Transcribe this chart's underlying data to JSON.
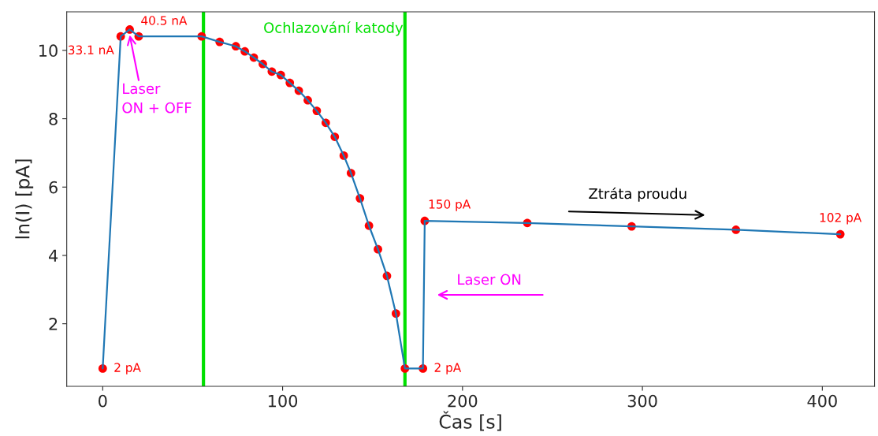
{
  "chart_data": {
    "type": "line",
    "xlabel": "Čas [s]",
    "ylabel": "ln(I) [pA]",
    "x": [
      0,
      10,
      15,
      20,
      55,
      65,
      74,
      79,
      84,
      89,
      94,
      99,
      104,
      109,
      114,
      119,
      124,
      129,
      134,
      138,
      143,
      148,
      153,
      158,
      163,
      168,
      178,
      179,
      236,
      294,
      352,
      410
    ],
    "series": [
      {
        "color": "#1f77b4",
        "values": [
          0.69,
          10.41,
          10.61,
          10.41,
          10.41,
          10.25,
          10.12,
          9.97,
          9.79,
          9.6,
          9.38,
          9.28,
          9.05,
          8.82,
          8.54,
          8.23,
          7.88,
          7.47,
          6.92,
          6.41,
          5.67,
          4.87,
          4.18,
          3.4,
          2.3,
          0.69,
          0.69,
          5.01,
          4.95,
          4.85,
          4.75,
          4.62
        ]
      },
      {
        "type": "scatter",
        "color": "#ff0000",
        "marker": "circle",
        "values": [
          0.69,
          10.41,
          10.61,
          10.41,
          10.41,
          10.25,
          10.12,
          9.97,
          9.79,
          9.6,
          9.38,
          9.28,
          9.05,
          8.82,
          8.54,
          8.23,
          7.88,
          7.47,
          6.92,
          6.41,
          5.67,
          4.87,
          4.18,
          3.4,
          2.3,
          0.69,
          0.69,
          5.01,
          4.95,
          4.85,
          4.75,
          4.62
        ]
      }
    ],
    "xlim": [
      -20,
      429
    ],
    "ylim": [
      0.17,
      11.13
    ],
    "xticks": [
      0,
      100,
      200,
      300,
      400
    ],
    "yticks": [
      2,
      4,
      6,
      8,
      10
    ],
    "ref_lines": [
      {
        "axis": "x",
        "value": 56,
        "color": "#00e000"
      },
      {
        "axis": "x",
        "value": 168,
        "color": "#00e000"
      }
    ],
    "annotations": [
      {
        "text": "2 pA",
        "x": 0,
        "y": 0.69
      },
      {
        "text": "33.1 nA",
        "x": 10,
        "y": 10.41
      },
      {
        "text": "40.5 nA",
        "x": 15,
        "y": 10.61
      },
      {
        "text": "Laser\nON + OFF",
        "x": 15,
        "y": 10.45
      },
      {
        "text": "Ochlazování katody"
      },
      {
        "text": "2 pA",
        "x": 178,
        "y": 0.69
      },
      {
        "text": "150 pA",
        "x": 179,
        "y": 5.01
      },
      "Laser ON",
      "Ztráta proudu",
      {
        "text": "102 pA",
        "x": 410,
        "y": 4.62
      }
    ],
    "grid": false
  }
}
